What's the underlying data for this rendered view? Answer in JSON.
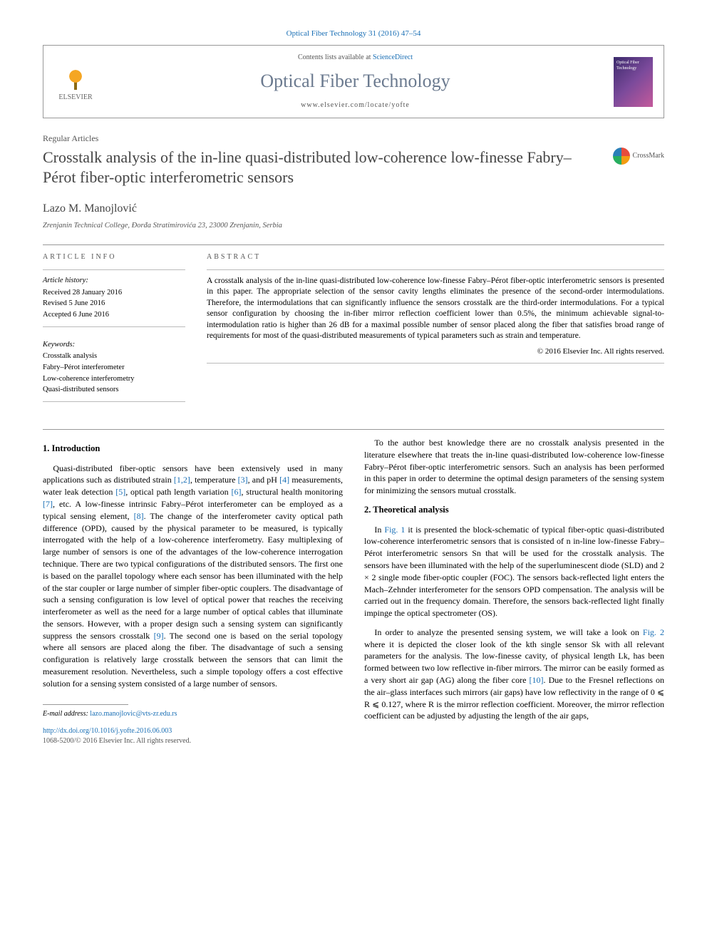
{
  "citation": "Optical Fiber Technology 31 (2016) 47–54",
  "header": {
    "contents_prefix": "Contents lists available at ",
    "contents_link": "ScienceDirect",
    "journal_name": "Optical Fiber Technology",
    "journal_url": "www.elsevier.com/locate/yofte",
    "publisher": "ELSEVIER",
    "cover_label": "Optical Fiber Technology"
  },
  "article": {
    "type": "Regular Articles",
    "title": "Crosstalk analysis of the in-line quasi-distributed low-coherence low-finesse Fabry–Pérot fiber-optic interferometric sensors",
    "crossmark": "CrossMark",
    "author": "Lazo M. Manojlović",
    "affiliation": "Zrenjanin Technical College, Đorđa Stratimirovića 23, 23000 Zrenjanin, Serbia"
  },
  "info": {
    "heading": "ARTICLE INFO",
    "history_label": "Article history:",
    "received": "Received 28 January 2016",
    "revised": "Revised 5 June 2016",
    "accepted": "Accepted 6 June 2016",
    "keywords_label": "Keywords:",
    "keywords": [
      "Crosstalk analysis",
      "Fabry–Pérot interferometer",
      "Low-coherence interferometry",
      "Quasi-distributed sensors"
    ]
  },
  "abstract": {
    "heading": "ABSTRACT",
    "text": "A crosstalk analysis of the in-line quasi-distributed low-coherence low-finesse Fabry–Pérot fiber-optic interferometric sensors is presented in this paper. The appropriate selection of the sensor cavity lengths eliminates the presence of the second-order intermodulations. Therefore, the intermodulations that can significantly influence the sensors crosstalk are the third-order intermodulations. For a typical sensor configuration by choosing the in-fiber mirror reflection coefficient lower than 0.5%, the minimum achievable signal-to-intermodulation ratio is higher than 26 dB for a maximal possible number of sensor placed along the fiber that satisfies broad range of requirements for most of the quasi-distributed measurements of typical parameters such as strain and temperature.",
    "copyright": "© 2016 Elsevier Inc. All rights reserved."
  },
  "sections": {
    "intro_heading": "1. Introduction",
    "intro_p1_a": "Quasi-distributed fiber-optic sensors have been extensively used in many applications such as distributed strain ",
    "intro_p1_r1": "[1,2]",
    "intro_p1_b": ", temperature ",
    "intro_p1_r2": "[3]",
    "intro_p1_c": ", and pH ",
    "intro_p1_r3": "[4]",
    "intro_p1_d": " measurements, water leak detection ",
    "intro_p1_r4": "[5]",
    "intro_p1_e": ", optical path length variation ",
    "intro_p1_r5": "[6]",
    "intro_p1_f": ", structural health monitoring ",
    "intro_p1_r6": "[7]",
    "intro_p1_g": ", etc. A low-finesse intrinsic Fabry–Pérot interferometer can be employed as a typical sensing element, ",
    "intro_p1_r7": "[8]",
    "intro_p1_h": ". The change of the interferometer cavity optical path difference (OPD), caused by the physical parameter to be measured, is typically interrogated with the help of a low-coherence interferometry. Easy multiplexing of large number of sensors is one of the advantages of the low-coherence interrogation technique. There are two typical configurations of the distributed sensors. The first one is based on the parallel topology where each sensor has been illuminated with the help of the star coupler or large number of simpler fiber-optic couplers. The disadvantage of such a sensing configuration is low level of optical power that reaches the receiving interferometer as well as the need for a large number of optical cables that illuminate the sensors. However, with a proper design such a sensing system can significantly suppress the sensors crosstalk ",
    "intro_p1_r8": "[9]",
    "intro_p1_i": ". The second one is based on the serial topology where all sensors are placed along the fiber. The disadvantage of such a sensing configuration is relatively large crosstalk between the sensors that can limit the measurement resolution. Nevertheless, such a simple topology offers a cost effective solution for a sensing system consisted of a large number of sensors.",
    "col2_p1": "To the author best knowledge there are no crosstalk analysis presented in the literature elsewhere that treats the in-line quasi-distributed low-coherence low-finesse Fabry–Pérot fiber-optic interferometric sensors. Such an analysis has been performed in this paper in order to determine the optimal design parameters of the sensing system for minimizing the sensors mutual crosstalk.",
    "theory_heading": "2. Theoretical analysis",
    "theory_p1_a": "In ",
    "theory_p1_fig1": "Fig. 1",
    "theory_p1_b": " it is presented the block-schematic of typical fiber-optic quasi-distributed low-coherence interferometric sensors that is consisted of n in-line low-finesse Fabry–Pérot interferometric sensors Sn that will be used for the crosstalk analysis. The sensors have been illuminated with the help of the superluminescent diode (SLD) and 2 × 2 single mode fiber-optic coupler (FOC). The sensors back-reflected light enters the Mach–Zehnder interferometer for the sensors OPD compensation. The analysis will be carried out in the frequency domain. Therefore, the sensors back-reflected light finally impinge the optical spectrometer (OS).",
    "theory_p2_a": "In order to analyze the presented sensing system, we will take a look on ",
    "theory_p2_fig2": "Fig. 2",
    "theory_p2_b": " where it is depicted the closer look of the kth single sensor Sk with all relevant parameters for the analysis. The low-finesse cavity, of physical length Lk, has been formed between two low reflective in-fiber mirrors. The mirror can be easily formed as a very short air gap (AG) along the fiber core ",
    "theory_p2_r10": "[10]",
    "theory_p2_c": ". Due to the Fresnel reflections on the air–glass interfaces such mirrors (air gaps) have low reflectivity in the range of 0 ⩽ R ⩽ 0.127, where R is the mirror reflection coefficient. Moreover, the mirror reflection coefficient can be adjusted by adjusting the length of the air gaps,"
  },
  "footer": {
    "email_label": "E-mail address: ",
    "email": "lazo.manojlovic@vts-zr.edu.rs",
    "doi": "http://dx.doi.org/10.1016/j.yofte.2016.06.003",
    "issn": "1068-5200/© 2016 Elsevier Inc. All rights reserved."
  }
}
